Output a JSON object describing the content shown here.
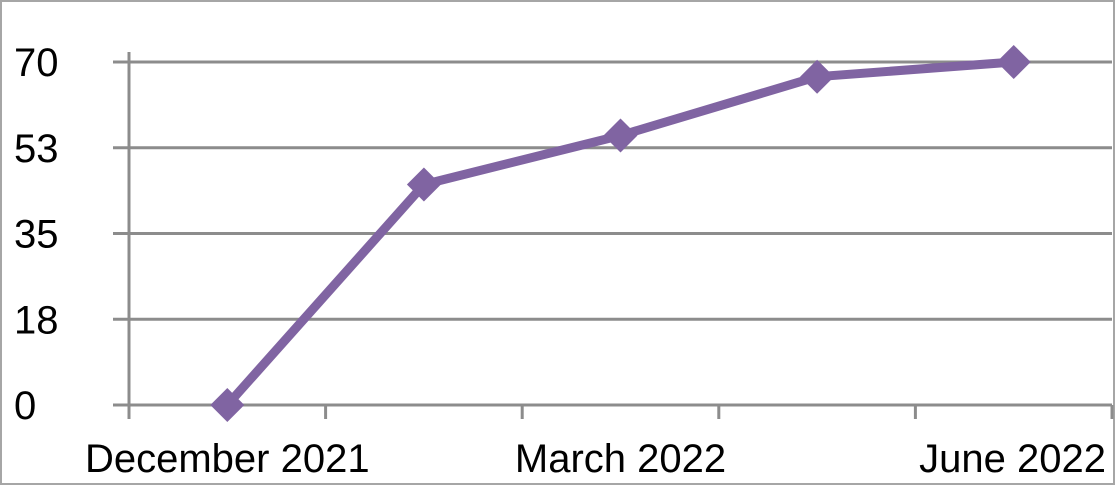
{
  "chart_data": {
    "type": "line",
    "categories": [
      "December 2021",
      "",
      "March 2022",
      "",
      "June 2022"
    ],
    "x_points": [
      "",
      "",
      "",
      "",
      ""
    ],
    "series": [
      {
        "values": [
          0,
          45,
          55,
          67,
          70
        ],
        "color": "#8064a2",
        "marker": "diamond"
      }
    ],
    "x_tick_labels": [
      "December 2021",
      "March 2022",
      "June 2022"
    ],
    "y_tick_labels": [
      "0",
      "18",
      "35",
      "53",
      "70"
    ],
    "y_ticks": [
      0,
      17.5,
      35,
      52.5,
      70
    ],
    "ylim": [
      0,
      70
    ],
    "grid": true,
    "legend": "none"
  }
}
